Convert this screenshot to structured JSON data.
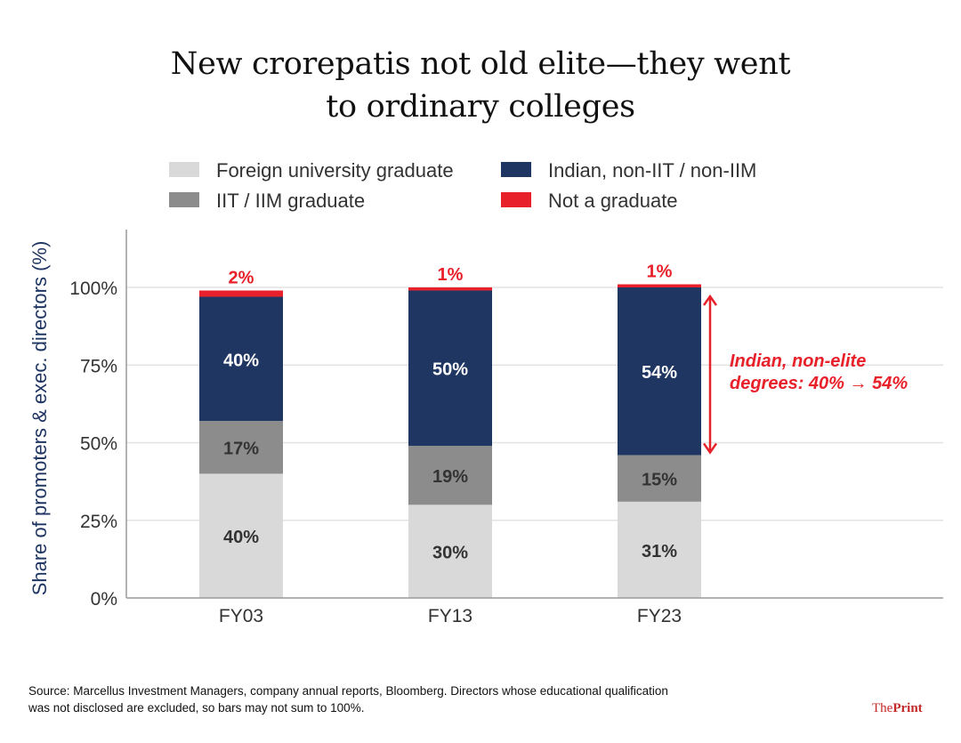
{
  "title_line1": "New crorepatis not old elite—they went",
  "title_line2": "to ordinary colleges",
  "chart_data": {
    "type": "bar",
    "stacked": true,
    "categories": [
      "FY03",
      "FY13",
      "FY23"
    ],
    "series": [
      {
        "name": "Foreign university graduate",
        "color": "#d9d9d9",
        "values": [
          40,
          30,
          31
        ],
        "labels": [
          "40%",
          "30%",
          "31%"
        ]
      },
      {
        "name": "IIT / IIM graduate",
        "color": "#8c8c8c",
        "values": [
          17,
          19,
          15
        ],
        "labels": [
          "17%",
          "19%",
          "15%"
        ]
      },
      {
        "name": "Indian, non-IIT / non-IIM",
        "color": "#1f3662",
        "values": [
          40,
          50,
          54
        ],
        "labels": [
          "40%",
          "50%",
          "54%"
        ]
      },
      {
        "name": "Not a graduate",
        "color": "#e8202a",
        "values": [
          2,
          1,
          1
        ],
        "labels": [
          "2%",
          "1%",
          "1%"
        ]
      }
    ],
    "ylabel": "Share of promoters & exec. directors (%)",
    "ylim": [
      0,
      100
    ],
    "yticks": [
      0,
      25,
      50,
      75,
      100
    ],
    "ytick_labels": [
      "0%",
      "25%",
      "50%",
      "75%",
      "100%"
    ],
    "grid": true,
    "legend_position": "top",
    "annotation": {
      "line1": "Indian, non-elite",
      "line2": "degrees: 40% → 54%",
      "color": "#e8202a",
      "from": 100,
      "to": 46
    }
  },
  "footer": {
    "line1": "Source: Marcellus Investment Managers, company annual reports, Bloomberg. Directors whose educational qualification",
    "line2": "was not disclosed are excluded, so bars may not sum to 100%."
  },
  "brand": {
    "part1": "The",
    "part2": "Print"
  }
}
